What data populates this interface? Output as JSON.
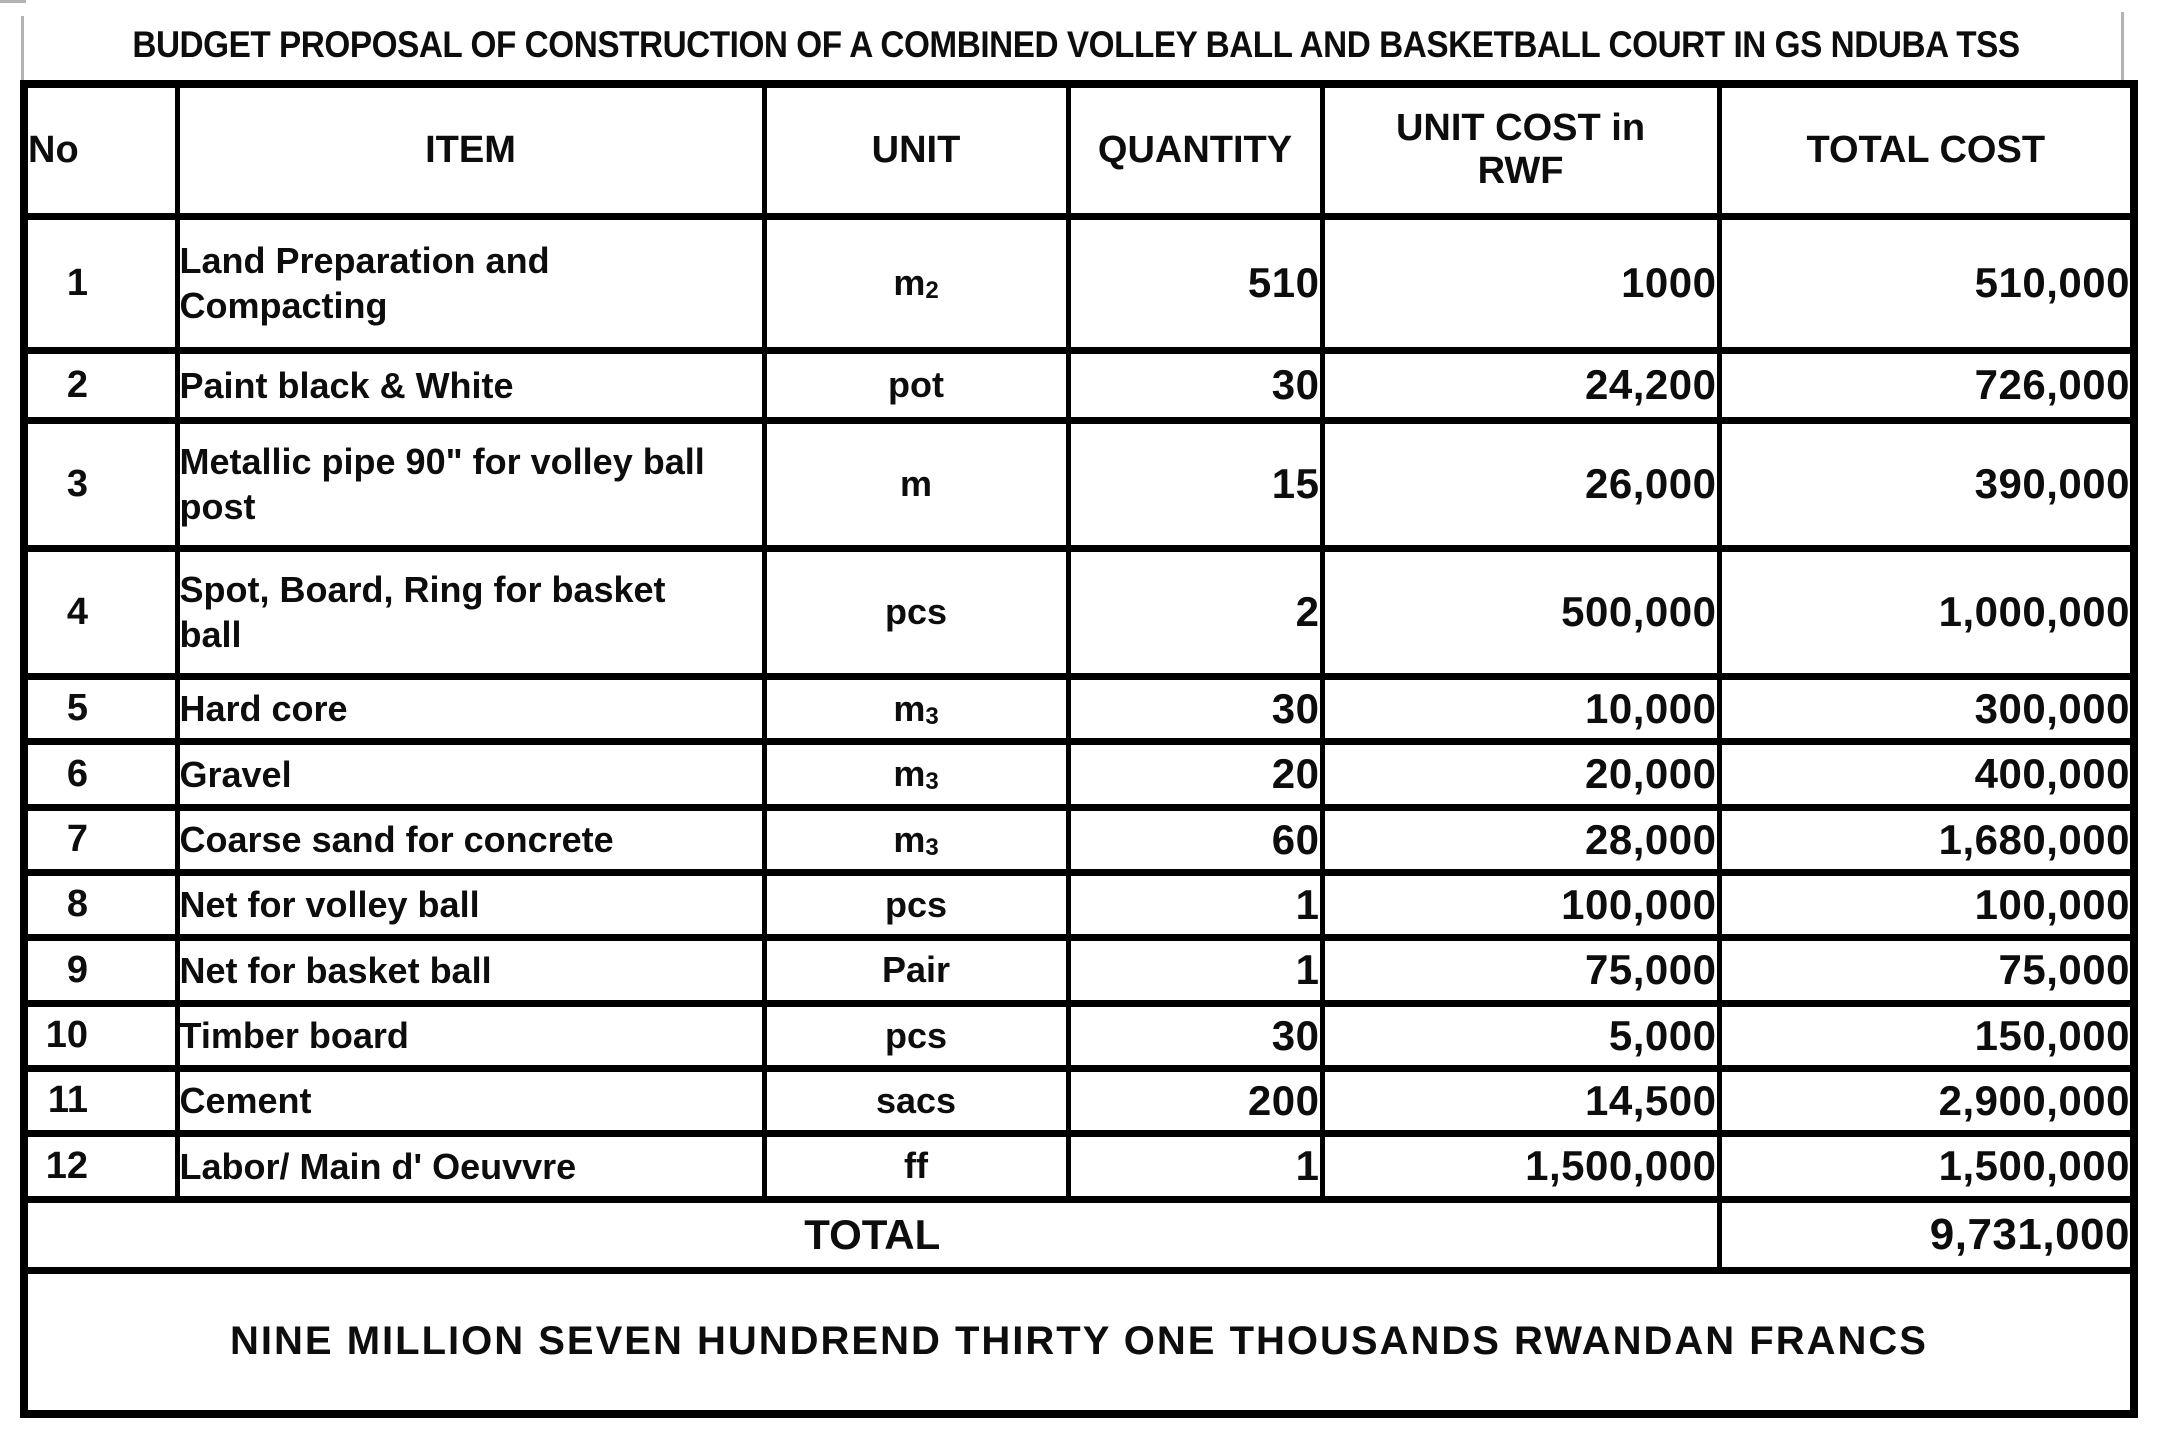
{
  "title": "BUDGET PROPOSAL OF CONSTRUCTION OF A COMBINED VOLLEY BALL AND BASKETBALL COURT IN GS NDUBA TSS",
  "table": {
    "columns": [
      "No",
      "ITEM",
      "UNIT",
      "QUANTITY",
      "UNIT COST in\nRWF",
      "TOTAL COST"
    ],
    "rows": [
      {
        "no": "1",
        "item": "Land Preparation and\nCompacting",
        "unit": "m2",
        "quantity": "510",
        "unit_cost": "1000",
        "total_cost": "510,000"
      },
      {
        "no": "2",
        "item": "Paint black & White",
        "unit": "pot",
        "quantity": "30",
        "unit_cost": "24,200",
        "total_cost": "726,000"
      },
      {
        "no": "3",
        "item": "Metallic pipe 90\" for volley ball\npost",
        "unit": "m",
        "quantity": "15",
        "unit_cost": "26,000",
        "total_cost": "390,000"
      },
      {
        "no": "4",
        "item": "Spot, Board, Ring for basket\nball",
        "unit": "pcs",
        "quantity": "2",
        "unit_cost": "500,000",
        "total_cost": "1,000,000"
      },
      {
        "no": "5",
        "item": "Hard core",
        "unit": "m3",
        "quantity": "30",
        "unit_cost": "10,000",
        "total_cost": "300,000"
      },
      {
        "no": "6",
        "item": "Gravel",
        "unit": "m3",
        "quantity": "20",
        "unit_cost": "20,000",
        "total_cost": "400,000"
      },
      {
        "no": "7",
        "item": "Coarse sand for concrete",
        "unit": "m3",
        "quantity": "60",
        "unit_cost": "28,000",
        "total_cost": "1,680,000"
      },
      {
        "no": "8",
        "item": "Net for volley ball",
        "unit": "pcs",
        "quantity": "1",
        "unit_cost": "100,000",
        "total_cost": "100,000"
      },
      {
        "no": "9",
        "item": "Net for basket ball",
        "unit": "Pair",
        "quantity": "1",
        "unit_cost": "75,000",
        "total_cost": "75,000"
      },
      {
        "no": "10",
        "item": "Timber board",
        "unit": "pcs",
        "quantity": "30",
        "unit_cost": "5,000",
        "total_cost": "150,000"
      },
      {
        "no": "11",
        "item": "Cement",
        "unit": "sacs",
        "quantity": "200",
        "unit_cost": "14,500",
        "total_cost": "2,900,000"
      },
      {
        "no": "12",
        "item": "Labor/ Main d' Oeuvvre",
        "unit": "ff",
        "quantity": "1",
        "unit_cost": "1,500,000",
        "total_cost": "1,500,000"
      }
    ],
    "total_label": "TOTAL",
    "total_value": "9,731,000",
    "amount_in_words": "NINE MILLION SEVEN HUNDREND THIRTY ONE THOUSANDS RWANDAN FRANCS"
  },
  "colors": {
    "border": "#000000",
    "text": "#0d0d0d",
    "scan_mark": "#b3b3b3"
  }
}
